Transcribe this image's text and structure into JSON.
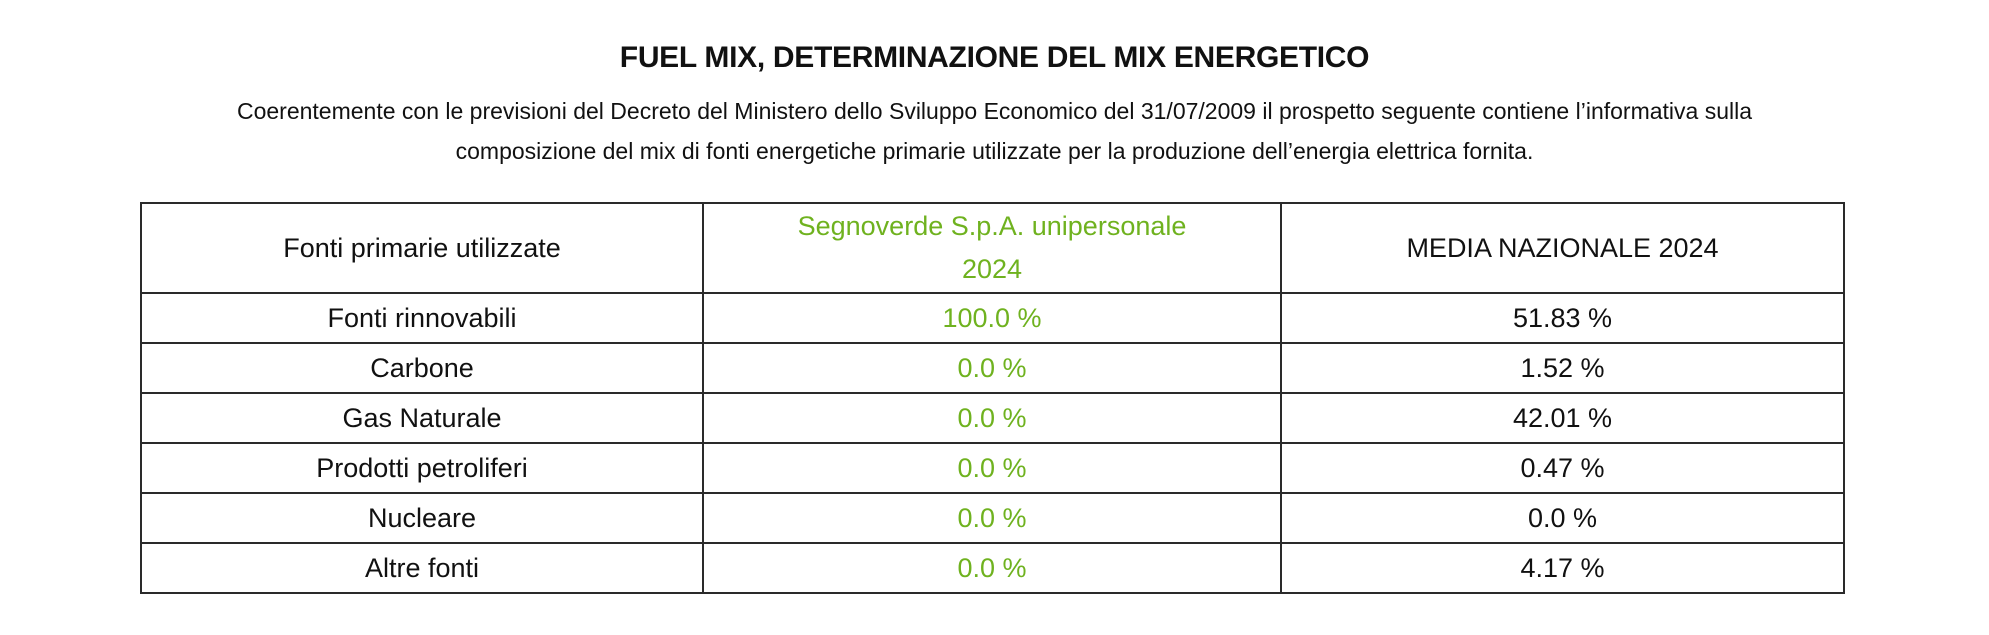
{
  "page": {
    "title": "FUEL MIX, DETERMINAZIONE DEL MIX ENERGETICO",
    "intro_line1": "Coerentemente con le previsioni del Decreto del Ministero dello Sviluppo Economico del 31/07/2009 il prospetto seguente contiene l’informativa sulla",
    "intro_line2": "composizione del mix di fonti energetiche primarie utilizzate per la produzione dell’energia elettrica fornita."
  },
  "table": {
    "headers": {
      "source": "Fonti primarie utilizzate",
      "company_line1": "Segnoverde S.p.A. unipersonale",
      "company_line2": "2024",
      "national": "MEDIA NAZIONALE 2024"
    },
    "rows": [
      {
        "source": "Fonti rinnovabili",
        "company": "100.0 %",
        "national": "51.83 %"
      },
      {
        "source": "Carbone",
        "company": "0.0 %",
        "national": "1.52 %"
      },
      {
        "source": "Gas Naturale",
        "company": "0.0 %",
        "national": "42.01 %"
      },
      {
        "source": "Prodotti petroliferi",
        "company": "0.0 %",
        "national": "0.47 %"
      },
      {
        "source": "Nucleare",
        "company": "0.0 %",
        "national": "0.0 %"
      },
      {
        "source": "Altre fonti",
        "company": "0.0 %",
        "national": "4.17 %"
      }
    ]
  },
  "colors": {
    "accent_green": "#6fb21f",
    "text": "#111111",
    "border": "#2a2a2a"
  }
}
